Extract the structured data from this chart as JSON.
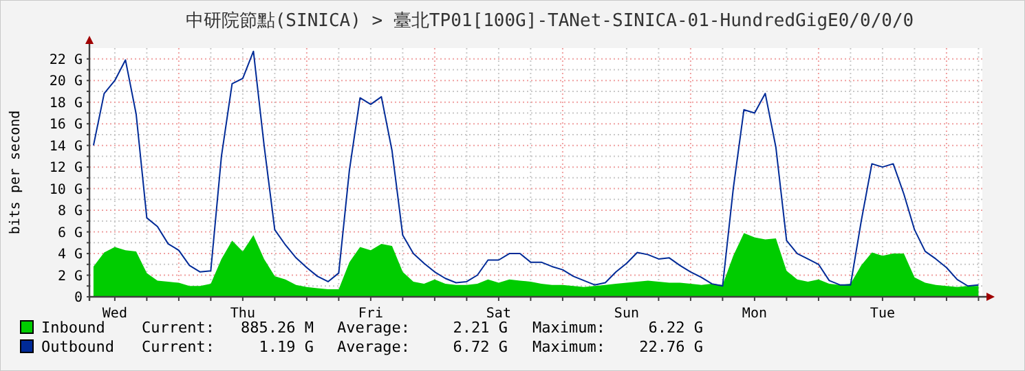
{
  "chart_data": {
    "type": "line",
    "title": "中研院節點(SINICA) > 臺北TP01[100G]-TANet-SINICA-01-HundredGigE0/0/0/0",
    "ylabel": "bits per second",
    "categories": [
      null,
      null,
      "Wed",
      null,
      null,
      null,
      null,
      null,
      null,
      null,
      null,
      null,
      null,
      null,
      "Thu",
      null,
      null,
      null,
      null,
      null,
      null,
      null,
      null,
      null,
      null,
      null,
      "Fri",
      null,
      null,
      null,
      null,
      null,
      null,
      null,
      null,
      null,
      null,
      null,
      "Sat",
      null,
      null,
      null,
      null,
      null,
      null,
      null,
      null,
      null,
      null,
      null,
      "Sun",
      null,
      null,
      null,
      null,
      null,
      null,
      null,
      null,
      null,
      null,
      null,
      "Mon",
      null,
      null,
      null,
      null,
      null,
      null,
      null,
      null,
      null,
      null,
      null,
      "Tue",
      null,
      null,
      null,
      null,
      null,
      null,
      null,
      null,
      null
    ],
    "series": [
      {
        "name": "Inbound",
        "type": "area",
        "color": "#00cc00",
        "values": [
          2.8,
          4.1,
          4.6,
          4.3,
          4.2,
          2.2,
          1.5,
          1.4,
          1.3,
          1.0,
          1.0,
          1.2,
          3.5,
          5.2,
          4.2,
          5.7,
          3.5,
          1.9,
          1.6,
          1.1,
          0.9,
          0.8,
          0.7,
          0.7,
          3.2,
          4.6,
          4.3,
          4.9,
          4.7,
          2.3,
          1.4,
          1.2,
          1.6,
          1.2,
          1.1,
          1.1,
          1.2,
          1.6,
          1.3,
          1.6,
          1.5,
          1.4,
          1.2,
          1.1,
          1.1,
          1.0,
          0.9,
          1.0,
          1.1,
          1.2,
          1.3,
          1.4,
          1.5,
          1.4,
          1.3,
          1.3,
          1.2,
          1.1,
          1.2,
          1.1,
          3.8,
          5.9,
          5.5,
          5.3,
          5.4,
          2.4,
          1.6,
          1.4,
          1.6,
          1.2,
          1.1,
          1.2,
          2.9,
          4.1,
          3.8,
          4.0,
          4.0,
          1.8,
          1.3,
          1.1,
          1.0,
          0.9,
          1.0,
          1.0
        ]
      },
      {
        "name": "Outbound",
        "type": "line",
        "color": "#002a97",
        "values": [
          14.0,
          18.8,
          20.0,
          21.9,
          16.9,
          7.3,
          6.5,
          4.9,
          4.3,
          2.9,
          2.3,
          2.4,
          13.0,
          19.7,
          20.2,
          22.7,
          14.0,
          6.2,
          4.8,
          3.6,
          2.7,
          1.9,
          1.4,
          2.2,
          11.7,
          18.4,
          17.8,
          18.5,
          13.5,
          5.7,
          4.0,
          3.1,
          2.3,
          1.7,
          1.3,
          1.4,
          2.0,
          3.4,
          3.4,
          4.0,
          4.0,
          3.2,
          3.2,
          2.8,
          2.5,
          1.9,
          1.5,
          1.1,
          1.3,
          2.3,
          3.1,
          4.1,
          3.9,
          3.5,
          3.6,
          2.9,
          2.3,
          1.8,
          1.2,
          1.0,
          10.0,
          17.3,
          17.0,
          18.8,
          13.8,
          5.2,
          4.0,
          3.5,
          3.0,
          1.5,
          1.1,
          1.1,
          7.0,
          12.3,
          12.0,
          12.3,
          9.5,
          6.2,
          4.2,
          3.5,
          2.7,
          1.6,
          1.0,
          1.1
        ]
      }
    ],
    "ylim": [
      0,
      23
    ],
    "yticks": [
      0,
      {
        "value": 1,
        "label": null
      },
      {
        "value": 2,
        "label": "2 G"
      },
      {
        "value": 3,
        "label": null
      },
      {
        "value": 4,
        "label": "4 G"
      },
      {
        "value": 5,
        "label": null
      },
      {
        "value": 6,
        "label": "6 G"
      },
      {
        "value": 7,
        "label": null
      },
      {
        "value": 8,
        "label": "8 G"
      },
      {
        "value": 9,
        "label": null
      },
      {
        "value": 10,
        "label": "10 G"
      },
      {
        "value": 11,
        "label": null
      },
      {
        "value": 12,
        "label": "12 G"
      },
      {
        "value": 13,
        "label": null
      },
      {
        "value": 14,
        "label": "14 G"
      },
      {
        "value": 15,
        "label": null
      },
      {
        "value": 16,
        "label": "16 G"
      },
      {
        "value": 17,
        "label": null
      },
      {
        "value": 18,
        "label": "18 G"
      },
      {
        "value": 19,
        "label": null
      },
      {
        "value": 20,
        "label": "20 G"
      },
      {
        "value": 21,
        "label": null
      },
      {
        "value": 22,
        "label": "22 G"
      }
    ],
    "grid": true,
    "legend": "bottom",
    "marker": "none",
    "annotations": [
      "Current:",
      "885.26 M",
      "Average:",
      "2.21 G",
      "Maximum:",
      "6.22 G",
      "Current:",
      "1.19 G",
      "Average:",
      "6.72 G",
      "Maximum:",
      "22.76 G"
    ]
  }
}
